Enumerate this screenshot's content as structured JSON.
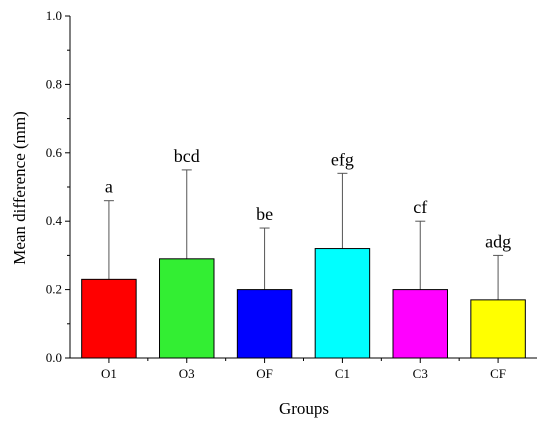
{
  "chart_data": {
    "type": "bar",
    "title": "",
    "xlabel": "Groups",
    "ylabel": "Mean difference (mm)",
    "ylim": [
      0.0,
      1.0
    ],
    "yticks": [
      "0.0",
      "0.2",
      "0.4",
      "0.6",
      "0.8",
      "1.0"
    ],
    "categories": [
      "O1",
      "O3",
      "OF",
      "C1",
      "C3",
      "CF"
    ],
    "values": [
      0.23,
      0.29,
      0.2,
      0.32,
      0.2,
      0.17
    ],
    "error_upper": [
      0.46,
      0.55,
      0.38,
      0.54,
      0.4,
      0.3
    ],
    "significance_labels": [
      "a",
      "bcd",
      "be",
      "efg",
      "cf",
      "adg"
    ],
    "colors": [
      "#ff0000",
      "#33ee33",
      "#0000ff",
      "#00ffff",
      "#ff00ff",
      "#ffff00"
    ],
    "grid": false,
    "error_bars": "one-sided (upper)"
  }
}
